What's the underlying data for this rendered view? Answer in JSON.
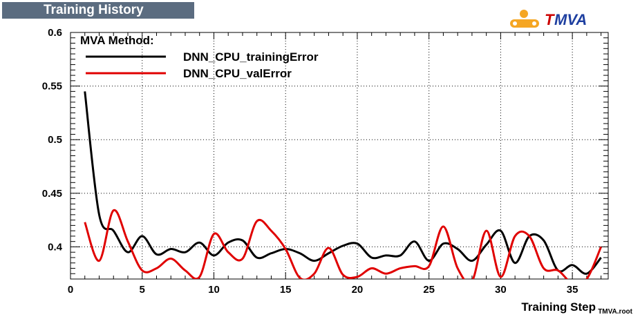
{
  "window": {
    "title": "Training History"
  },
  "logo": {
    "text": "TMVA"
  },
  "footnote": "TMVA.root",
  "colors": {
    "title_bg": "#5b6c80",
    "training": "#000000",
    "validation": "#e00000",
    "logo_orange": "#f5a623",
    "logo_red": "#cc0000",
    "logo_blue": "#1e3fa0"
  },
  "chart_data": {
    "type": "line",
    "title": "Training History",
    "xlabel": "Training Step",
    "ylabel": "",
    "xlim": [
      0,
      37.5
    ],
    "ylim": [
      0.37,
      0.6
    ],
    "grid": true,
    "legend_placement": "top-left",
    "legend_header": "MVA Method:",
    "x_ticks": [
      0,
      5,
      10,
      15,
      20,
      25,
      30,
      35
    ],
    "y_ticks": [
      0.4,
      0.45,
      0.5,
      0.55,
      0.6
    ],
    "x": [
      1,
      2,
      3,
      4,
      5,
      6,
      7,
      8,
      9,
      10,
      11,
      12,
      13,
      14,
      15,
      16,
      17,
      18,
      19,
      20,
      21,
      22,
      23,
      24,
      25,
      26,
      27,
      28,
      29,
      30,
      31,
      32,
      33,
      34,
      35,
      36,
      37
    ],
    "series": [
      {
        "name": "DNN_CPU_trainingError",
        "color": "#000000",
        "values": [
          0.545,
          0.43,
          0.415,
          0.395,
          0.41,
          0.393,
          0.398,
          0.395,
          0.404,
          0.392,
          0.404,
          0.406,
          0.39,
          0.394,
          0.398,
          0.394,
          0.387,
          0.394,
          0.401,
          0.403,
          0.39,
          0.392,
          0.392,
          0.405,
          0.387,
          0.403,
          0.398,
          0.387,
          0.402,
          0.415,
          0.385,
          0.41,
          0.406,
          0.378,
          0.383,
          0.375,
          0.39
        ]
      },
      {
        "name": "DNN_CPU_valError",
        "color": "#e00000",
        "values": [
          0.423,
          0.387,
          0.434,
          0.405,
          0.378,
          0.38,
          0.389,
          0.378,
          0.372,
          0.412,
          0.395,
          0.389,
          0.424,
          0.415,
          0.398,
          0.371,
          0.375,
          0.399,
          0.374,
          0.372,
          0.38,
          0.375,
          0.38,
          0.382,
          0.382,
          0.419,
          0.38,
          0.368,
          0.415,
          0.372,
          0.41,
          0.41,
          0.38,
          0.378,
          0.366,
          0.37,
          0.4
        ]
      }
    ]
  }
}
